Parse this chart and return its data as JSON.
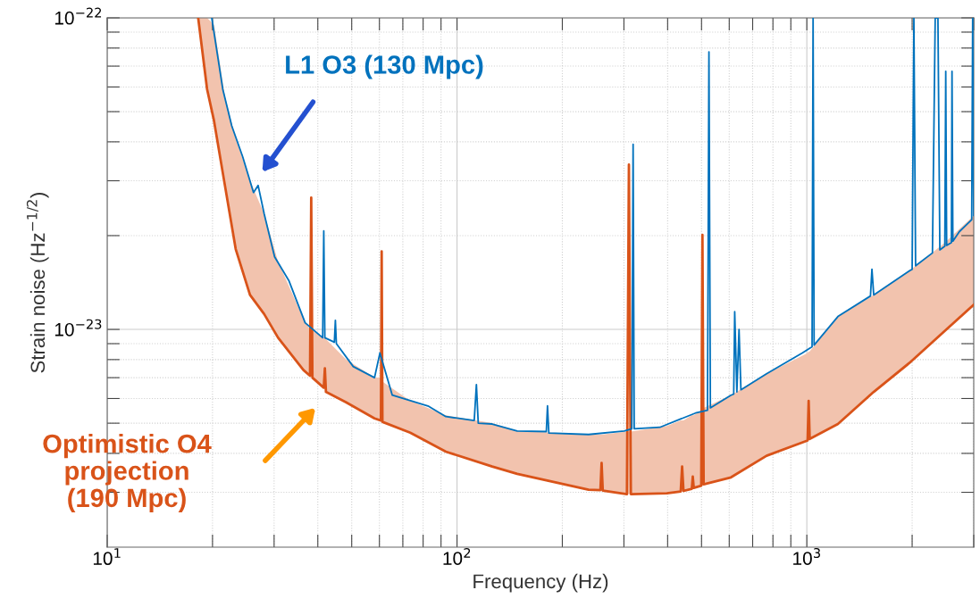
{
  "chart_data": {
    "type": "line",
    "xlabel": "Frequency (Hz)",
    "ylabel": "Strain noise (Hz$^{−1/2}$)",
    "log": "xy",
    "grid": true,
    "xlim": [
      10,
      3000
    ],
    "ylim": [
      2e-24,
      1e-22
    ],
    "xticks": [
      {
        "value": 10,
        "label": "10$^{1}$"
      },
      {
        "value": 20,
        "label": null
      },
      {
        "value": 30,
        "label": null
      },
      {
        "value": 40,
        "label": null
      },
      {
        "value": 50,
        "label": null
      },
      {
        "value": 60,
        "label": null
      },
      {
        "value": 70,
        "label": null
      },
      {
        "value": 80,
        "label": null
      },
      {
        "value": 90,
        "label": null
      },
      {
        "value": 100,
        "label": "10$^{2}$"
      },
      {
        "value": 200,
        "label": null
      },
      {
        "value": 300,
        "label": null
      },
      {
        "value": 400,
        "label": null
      },
      {
        "value": 500,
        "label": null
      },
      {
        "value": 600,
        "label": null
      },
      {
        "value": 700,
        "label": null
      },
      {
        "value": 800,
        "label": null
      },
      {
        "value": 900,
        "label": null
      },
      {
        "value": 1000,
        "label": "10$^{3}$"
      },
      {
        "value": 2000,
        "label": null
      },
      {
        "value": 3000,
        "label": null
      }
    ],
    "yticks": [
      {
        "value": 3e-24,
        "label": null
      },
      {
        "value": 4e-24,
        "label": null
      },
      {
        "value": 5e-24,
        "label": null
      },
      {
        "value": 6e-24,
        "label": null
      },
      {
        "value": 7e-24,
        "label": null
      },
      {
        "value": 8e-24,
        "label": null
      },
      {
        "value": 9e-24,
        "label": null
      },
      {
        "value": 1e-23,
        "label": "10$^{−23}$"
      },
      {
        "value": 2e-23,
        "label": null
      },
      {
        "value": 3e-23,
        "label": null
      },
      {
        "value": 4e-23,
        "label": null
      },
      {
        "value": 5e-23,
        "label": null
      },
      {
        "value": 6e-23,
        "label": null
      },
      {
        "value": 7e-23,
        "label": null
      },
      {
        "value": 8e-23,
        "label": null
      },
      {
        "value": 9e-23,
        "label": null
      },
      {
        "value": 1e-22,
        "label": "10$^{−22}$"
      }
    ],
    "series": [
      {
        "name": "L1 O3 (130 Mpc)",
        "color": "#0072bd",
        "x": [
          19.9,
          21.4,
          22.7,
          24.4,
          26.2,
          27.0,
          28.1,
          30.1,
          33.1,
          36.8,
          41.3,
          41.6,
          41.9,
          44.6,
          44.9,
          45.2,
          50.5,
          58.1,
          60.2,
          65.3,
          82.6,
          92.9,
          112,
          113.6,
          115,
          126,
          148.6,
          180,
          181.4,
          183,
          237.7,
          300.6,
          316,
          318.7,
          321,
          380,
          480.7,
          520,
          525,
          530,
          607,
          618,
          622,
          631,
          640,
          648,
          767,
          970,
          1035,
          1042,
          1049,
          1227,
          1520,
          1535,
          1553,
          1963,
          2000,
          2023,
          2046,
          2286,
          2328,
          2370,
          2400,
          2480,
          2495,
          2510,
          2590,
          2600,
          2615,
          2729,
          2960,
          2979,
          3000
        ],
        "values": [
          1e-22,
          5.9e-23,
          4.5e-23,
          3.58e-23,
          2.75e-23,
          2.9e-23,
          2.35e-23,
          1.71e-23,
          1.43e-23,
          1.05e-23,
          9.4e-24,
          2.07e-23,
          9.4e-24,
          9.1e-24,
          1.07e-23,
          9e-24,
          7.6e-24,
          7e-24,
          8.4e-24,
          6.15e-24,
          5.68e-24,
          5.25e-24,
          5.1e-24,
          6.65e-24,
          5e-24,
          4.97e-24,
          4.72e-24,
          4.7e-24,
          5.68e-24,
          4.65e-24,
          4.6e-24,
          4.72e-24,
          4.8e-24,
          3.93e-23,
          4.8e-24,
          4.85e-24,
          5.39e-24,
          5.5e-24,
          7.78e-23,
          5.6e-24,
          6.15e-24,
          6.2e-24,
          1.14e-23,
          6.3e-24,
          1e-23,
          6.4e-24,
          7.2e-24,
          8.4e-24,
          8.8e-24,
          1e-22,
          8.9e-24,
          1.1e-23,
          1.28e-23,
          1.56e-23,
          1.29e-23,
          1.54e-23,
          1.56e-23,
          1e-22,
          1.6e-23,
          1.76e-23,
          1e-22,
          1e-22,
          1.8e-23,
          1.85e-23,
          6.74e-23,
          1.86e-23,
          1.9e-23,
          6.74e-23,
          1.92e-23,
          2.06e-23,
          2.25e-23,
          1e-22,
          2.32e-23
        ]
      },
      {
        "name": "Optimistic O4\nprojection\n(190 Mpc)",
        "color": "#d95319",
        "x": [
          18.2,
          19.3,
          20.2,
          21.7,
          23.3,
          25.6,
          28.1,
          30.8,
          36.4,
          38.0,
          38.3,
          38.6,
          41.6,
          41.9,
          42.2,
          48.2,
          58.1,
          60.6,
          60.9,
          61.2,
          73.5,
          92.9,
          126,
          148.6,
          237.7,
          257,
          259,
          261,
          306,
          310,
          314,
          398,
          436,
          440,
          444,
          469,
          472,
          475,
          499,
          503,
          507,
          607,
          767,
          1005,
          1012,
          1019,
          1227,
          1553,
          1963,
          2483,
          3000
        ],
        "values": [
          1e-22,
          5.9e-23,
          4.67e-23,
          2.9e-23,
          1.81e-23,
          1.29e-23,
          1.12e-23,
          9.4e-24,
          7.4e-24,
          7.1e-24,
          2.65e-23,
          7e-24,
          6.5e-24,
          7.5e-24,
          6.3e-24,
          5.83e-24,
          5.18e-24,
          5.1e-24,
          1.78e-23,
          5.05e-24,
          4.66e-24,
          4.05e-24,
          3.63e-24,
          3.44e-24,
          3.06e-24,
          3.05e-24,
          3.73e-24,
          3.04e-24,
          2.96e-24,
          3.38e-23,
          2.96e-24,
          2.98e-24,
          3.02e-24,
          3.63e-24,
          3.03e-24,
          3.08e-24,
          3.37e-24,
          3.1e-24,
          3.15e-24,
          2.01e-23,
          3.18e-24,
          3.35e-24,
          3.93e-24,
          4.4e-24,
          5.9e-24,
          4.45e-24,
          4.97e-24,
          6.3e-24,
          7.8e-24,
          9.9e-24,
          1.2e-23
        ],
        "lower": [
          1e-22,
          5.9e-23,
          4.67e-23,
          2.9e-23,
          1.81e-23,
          1.29e-23,
          1.12e-23,
          9.4e-24,
          7.4e-24,
          7.1e-24,
          7.1e-24,
          7e-24,
          6.5e-24,
          6.5e-24,
          6.3e-24,
          5.83e-24,
          5.18e-24,
          5.1e-24,
          5.1e-24,
          5.05e-24,
          4.66e-24,
          4.05e-24,
          3.63e-24,
          3.44e-24,
          3.06e-24,
          3.05e-24,
          3.05e-24,
          3.04e-24,
          2.96e-24,
          2.96e-24,
          2.96e-24,
          2.98e-24,
          3.02e-24,
          3.02e-24,
          3.03e-24,
          3.08e-24,
          3.08e-24,
          3.1e-24,
          3.15e-24,
          3.15e-24,
          3.18e-24,
          3.35e-24,
          3.93e-24,
          4.4e-24,
          4.4e-24,
          4.45e-24,
          4.97e-24,
          6.3e-24,
          7.8e-24,
          9.9e-24,
          1.2e-23
        ],
        "upper": [
          1e-22,
          1e-22,
          9.5e-23,
          5.6e-23,
          4.1e-23,
          3e-23,
          2.35e-23,
          1.65e-23,
          1.08e-23,
          1e-23,
          1e-23,
          1e-23,
          9.4e-24,
          9.4e-24,
          9.3e-24,
          8e-24,
          7e-24,
          7e-24,
          7e-24,
          6.8e-24,
          5.9e-24,
          5.3e-24,
          5e-24,
          4.72e-24,
          4.6e-24,
          4.6e-24,
          4.6e-24,
          4.6e-24,
          4.7e-24,
          4.7e-24,
          4.7e-24,
          4.9e-24,
          5.1e-24,
          5.1e-24,
          5.1e-24,
          5.3e-24,
          5.3e-24,
          5.3e-24,
          5.5e-24,
          5.5e-24,
          5.6e-24,
          6.15e-24,
          7.2e-24,
          8.4e-24,
          8.5e-24,
          8.5e-24,
          1.1e-23,
          1.29e-23,
          1.54e-23,
          1.9e-23,
          2.32e-23
        ]
      }
    ]
  }
}
